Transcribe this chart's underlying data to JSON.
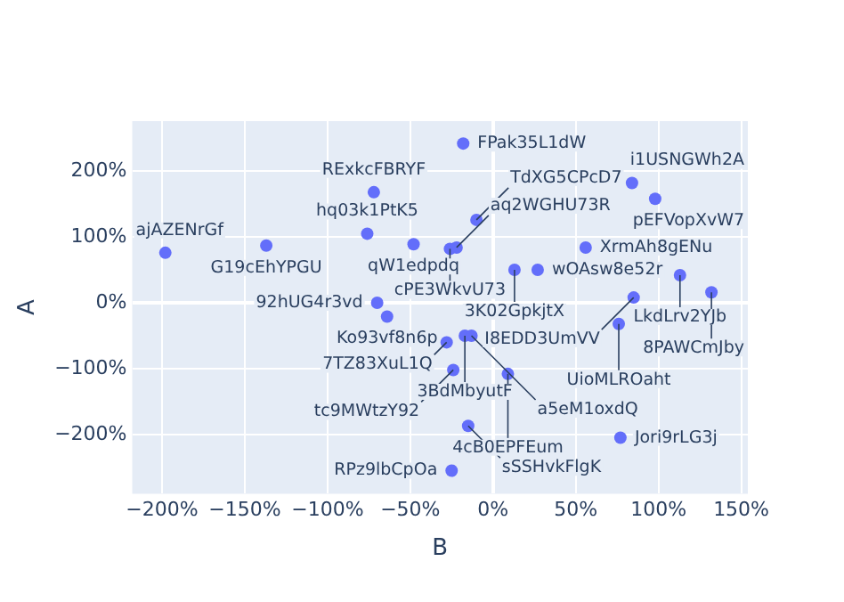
{
  "chart_data": {
    "type": "scatter",
    "xlabel": "B",
    "ylabel": "A",
    "marker": "circle",
    "grid": true,
    "legend": false,
    "xlim": [
      -218,
      154
    ],
    "ylim": [
      -290,
      276
    ],
    "xticks": [
      {
        "value": -200,
        "label": "−200%"
      },
      {
        "value": -150,
        "label": "−150%"
      },
      {
        "value": -100,
        "label": "−100%"
      },
      {
        "value": -50,
        "label": "−50%"
      },
      {
        "value": 0,
        "label": "0%"
      },
      {
        "value": 50,
        "label": "50%"
      },
      {
        "value": 100,
        "label": "100%"
      },
      {
        "value": 150,
        "label": "150%"
      }
    ],
    "yticks": [
      {
        "value": -200,
        "label": "−200%"
      },
      {
        "value": -100,
        "label": "−100%"
      },
      {
        "value": 0,
        "label": "0%"
      },
      {
        "value": 100,
        "label": "100%"
      },
      {
        "value": 200,
        "label": "200%"
      }
    ],
    "series": [
      {
        "color": "#636efa",
        "x": [
          -198,
          -137,
          -72,
          -76,
          -48,
          -26,
          -22,
          -10,
          -18,
          84,
          98,
          13,
          27,
          56,
          113,
          132,
          85,
          76,
          -70,
          -64,
          -28,
          -17,
          -13,
          -24,
          9,
          -15,
          77,
          -25
        ],
        "values": [
          76,
          87,
          168,
          105,
          89,
          82,
          84,
          126,
          242,
          182,
          158,
          50,
          50,
          84,
          42,
          16,
          8,
          -32,
          0,
          -21,
          -60,
          -50,
          -50,
          -102,
          -108,
          -187,
          -205,
          -255
        ]
      }
    ],
    "annotations": [
      {
        "text": "ajAZENrGf",
        "x": -198,
        "y": 76
      },
      {
        "text": "G19cEhYPGU",
        "x": -137,
        "y": 87
      },
      {
        "text": "RExkcFBRYF",
        "x": -72,
        "y": 168
      },
      {
        "text": "hq03k1PtK5",
        "x": -76,
        "y": 105
      },
      {
        "text": "qW1edpdq",
        "x": -48,
        "y": 89
      },
      {
        "text": "cPE3WkvU73",
        "x": -26,
        "y": 82
      },
      {
        "text": "aq2WGHU73R",
        "x": -22,
        "y": 84
      },
      {
        "text": "TdXG5CPcD7",
        "x": -10,
        "y": 126
      },
      {
        "text": "FPak35L1dW",
        "x": -18,
        "y": 242
      },
      {
        "text": "i1USNGWh2A",
        "x": 84,
        "y": 182
      },
      {
        "text": "pEFVopXvW7",
        "x": 98,
        "y": 158
      },
      {
        "text": "3K02GpkjtX",
        "x": 13,
        "y": 50
      },
      {
        "text": "wOAsw8e52r",
        "x": 27,
        "y": 50
      },
      {
        "text": "XrmAh8gENu",
        "x": 56,
        "y": 84
      },
      {
        "text": "LkdLrv2YJb",
        "x": 113,
        "y": 42
      },
      {
        "text": "8PAWCmJby",
        "x": 132,
        "y": 16
      },
      {
        "text": "I8EDD3UmVV",
        "x": 85,
        "y": 8
      },
      {
        "text": "UioMLROaht",
        "x": 76,
        "y": -32
      },
      {
        "text": "92hUG4r3vd",
        "x": -70,
        "y": 0
      },
      {
        "text": "Ko93vf8n6p",
        "x": -64,
        "y": -21
      },
      {
        "text": "7TZ83XuL1Q",
        "x": -28,
        "y": -60
      },
      {
        "text": "3BdMbyutF",
        "x": -17,
        "y": -50
      },
      {
        "text": "a5eM1oxdQ",
        "x": -13,
        "y": -50
      },
      {
        "text": "tc9MWtzY92",
        "x": -24,
        "y": -102
      },
      {
        "text": "4cB0EPFEum",
        "x": 9,
        "y": -108
      },
      {
        "text": "sSSHvkFlgK",
        "x": -15,
        "y": -187
      },
      {
        "text": "Jori9rLG3j",
        "x": 77,
        "y": -205
      },
      {
        "text": "RPz9lbCpOa",
        "x": -25,
        "y": -255
      }
    ]
  }
}
